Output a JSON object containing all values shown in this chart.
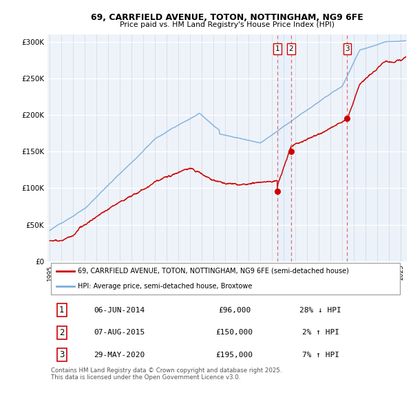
{
  "title_line1": "69, CARRFIELD AVENUE, TOTON, NOTTINGHAM, NG9 6FE",
  "title_line2": "Price paid vs. HM Land Registry's House Price Index (HPI)",
  "ylim": [
    0,
    310000
  ],
  "yticks": [
    0,
    50000,
    100000,
    150000,
    200000,
    250000,
    300000
  ],
  "ytick_labels": [
    "£0",
    "£50K",
    "£100K",
    "£150K",
    "£200K",
    "£250K",
    "£300K"
  ],
  "hpi_color": "#7aaedc",
  "price_color": "#cc0000",
  "vline_color": "#e06060",
  "shade_color": "#ddeeff",
  "plot_bg_color": "#eef3fa",
  "transactions": [
    {
      "date": 2014.44,
      "price": 96000,
      "label": "1",
      "hpi_diff": "28% ↓ HPI",
      "date_str": "06-JUN-2014"
    },
    {
      "date": 2015.6,
      "price": 150000,
      "label": "2",
      "hpi_diff": "2% ↑ HPI",
      "date_str": "07-AUG-2015"
    },
    {
      "date": 2020.41,
      "price": 195000,
      "label": "3",
      "hpi_diff": "7% ↑ HPI",
      "date_str": "29-MAY-2020"
    }
  ],
  "legend_line1": "69, CARRFIELD AVENUE, TOTON, NOTTINGHAM, NG9 6FE (semi-detached house)",
  "legend_line2": "HPI: Average price, semi-detached house, Broxtowe",
  "footnote": "Contains HM Land Registry data © Crown copyright and database right 2025.\nThis data is licensed under the Open Government Licence v3.0.",
  "xlim_start": 1994.8,
  "xlim_end": 2025.5
}
